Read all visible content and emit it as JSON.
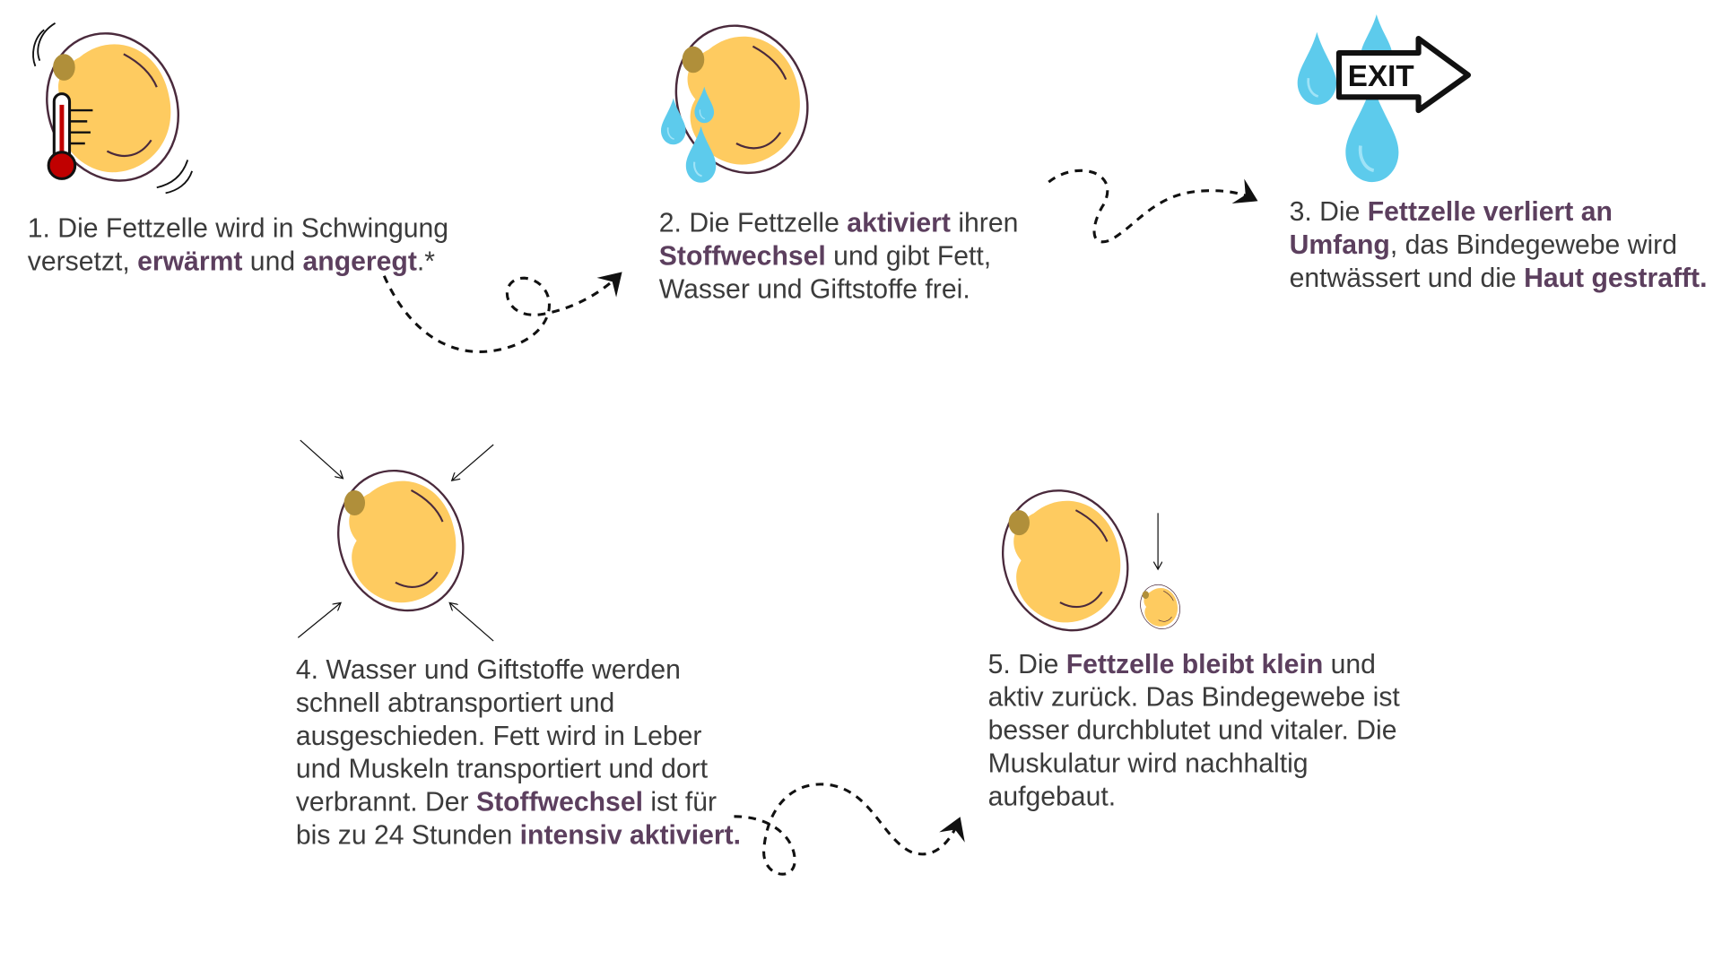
{
  "colors": {
    "text": "#3b3b3b",
    "highlight": "#5c3f5e",
    "fat": "#fecb60",
    "nucleus": "#b08f3a",
    "membrane": "#4a2a3c",
    "water": "#5dcbec",
    "thermo_red": "#c00000"
  },
  "icons": [
    "vibrating-fat-cell-with-thermometer-icon",
    "fat-cell-releasing-water-drops-icon",
    "water-drops-exit-arrow-icon",
    "compressed-fat-cell-icon",
    "shrinking-fat-cell-icon",
    "dashed-curved-arrow-icon"
  ],
  "exit_sign": "EXIT",
  "steps": [
    {
      "segments": [
        {
          "text": "1. Die Fettzelle wird in Schwingung versetzt, ",
          "bold": false
        },
        {
          "text": "erwärmt",
          "bold": true
        },
        {
          "text": " und ",
          "bold": false
        },
        {
          "text": "angeregt",
          "bold": true
        },
        {
          "text": ".*",
          "bold": false
        }
      ]
    },
    {
      "segments": [
        {
          "text": "2. Die Fettzelle ",
          "bold": false
        },
        {
          "text": "aktiviert",
          "bold": true
        },
        {
          "text": " ihren ",
          "bold": false
        },
        {
          "text": "Stoffwechsel",
          "bold": true
        },
        {
          "text": " und gibt Fett, Wasser und Giftstoffe frei.",
          "bold": false
        }
      ]
    },
    {
      "segments": [
        {
          "text": "3. Die ",
          "bold": false
        },
        {
          "text": "Fettzelle verliert an Umfang",
          "bold": true
        },
        {
          "text": ", das Bindegewebe wird entwässert und die ",
          "bold": false
        },
        {
          "text": "Haut gestrafft.",
          "bold": true
        }
      ]
    },
    {
      "segments": [
        {
          "text": "4. Wasser und Giftstoffe werden schnell abtransportiert und ausgeschieden. Fett wird in Leber und Muskeln transportiert und dort verbrannt. Der ",
          "bold": false
        },
        {
          "text": "Stoffwechsel",
          "bold": true
        },
        {
          "text": " ist für bis zu 24 Stunden ",
          "bold": false
        },
        {
          "text": "intensiv aktiviert.",
          "bold": true
        }
      ]
    },
    {
      "segments": [
        {
          "text": "5. Die ",
          "bold": false
        },
        {
          "text": "Fettzelle bleibt klein",
          "bold": true
        },
        {
          "text": " und aktiv zurück. Das Bindegewebe ist besser durchblutet und vitaler. Die Muskulatur wird nachhaltig aufgebaut.",
          "bold": false
        }
      ]
    }
  ]
}
